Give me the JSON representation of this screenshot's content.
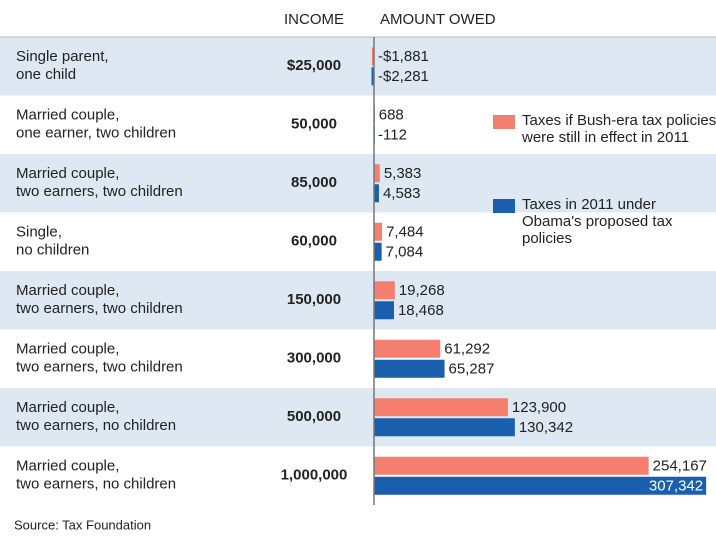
{
  "chart_data": {
    "type": "bar",
    "column_headers": [
      "INCOME",
      "AMOUNT OWED"
    ],
    "categories": [
      [
        "Single parent,",
        "one child"
      ],
      [
        "Married couple,",
        "one earner, two children"
      ],
      [
        "Married couple,",
        "two earners, two children"
      ],
      [
        "Single,",
        "no children"
      ],
      [
        "Married couple,",
        "two earners, two children"
      ],
      [
        "Married couple,",
        "two earners, two children"
      ],
      [
        "Married couple,",
        "two earners, no children"
      ],
      [
        "Married couple,",
        "two earners, no children"
      ]
    ],
    "incomes": [
      "$25,000",
      "50,000",
      "85,000",
      "60,000",
      "150,000",
      "300,000",
      "500,000",
      "1,000,000"
    ],
    "series": [
      {
        "name": "Taxes if Bush-era tax policies were still in effect in 2011",
        "color": "#f47f6f",
        "values": [
          -1881,
          688,
          5383,
          7484,
          19268,
          61292,
          123900,
          254167
        ],
        "value_labels": [
          "-$1,881",
          "688",
          "5,383",
          "7,484",
          "19,268",
          "61,292",
          "123,900",
          "254,167"
        ]
      },
      {
        "name": "Taxes in 2011 under Obama's proposed tax policies",
        "color": "#1a5fae",
        "values": [
          -2281,
          -112,
          4583,
          7084,
          18468,
          65287,
          130342,
          307342
        ],
        "value_labels": [
          "-$2,281",
          "-112",
          "4,583",
          "7,084",
          "18,468",
          "65,287",
          "130,342",
          "307,342"
        ]
      }
    ],
    "xlim": [
      -5000,
      310000
    ],
    "source": "Source: Tax Foundation"
  }
}
